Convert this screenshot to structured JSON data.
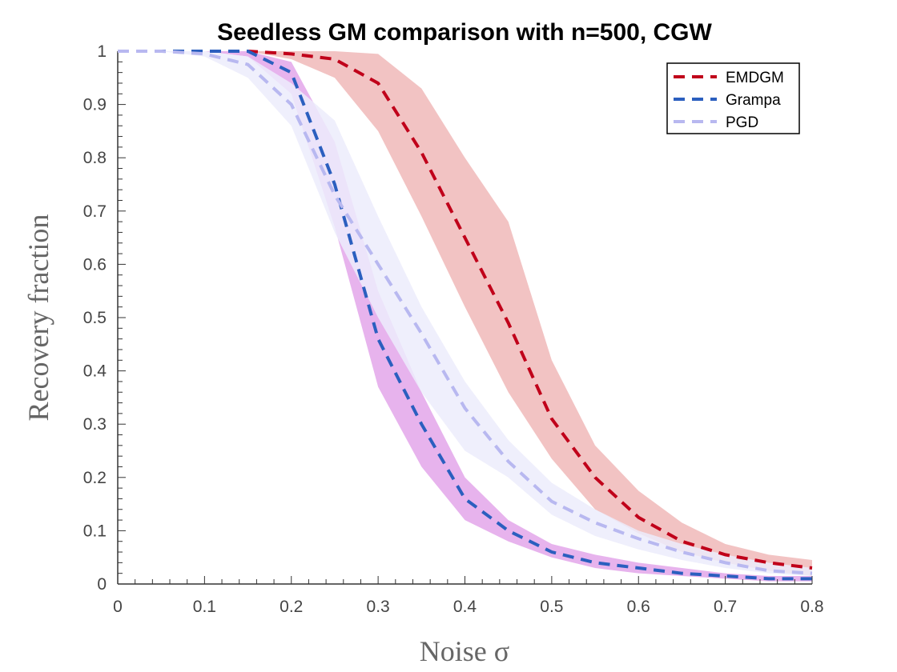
{
  "chart_data": {
    "type": "line",
    "title": "Seedless GM comparison with n=500, CGW",
    "xlabel": "Noise σ",
    "ylabel": "Recovery fraction",
    "xlim": [
      0,
      0.8
    ],
    "ylim": [
      0,
      1
    ],
    "xticks": [
      "0",
      "0.1",
      "0.2",
      "0.3",
      "0.4",
      "0.5",
      "0.6",
      "0.7",
      "0.8"
    ],
    "yticks": [
      "0",
      "0.1",
      "0.2",
      "0.3",
      "0.4",
      "0.5",
      "0.6",
      "0.7",
      "0.8",
      "0.9",
      "1"
    ],
    "grid": false,
    "legend_position": "top-right",
    "x": [
      0,
      0.05,
      0.1,
      0.15,
      0.2,
      0.25,
      0.3,
      0.35,
      0.4,
      0.45,
      0.5,
      0.55,
      0.6,
      0.65,
      0.7,
      0.75,
      0.8
    ],
    "series": [
      {
        "name": "EMDGM",
        "color": "#c0001a",
        "band_color": "#f0b8b8",
        "values": [
          1.0,
          1.0,
          1.0,
          1.0,
          0.995,
          0.985,
          0.94,
          0.81,
          0.65,
          0.49,
          0.31,
          0.2,
          0.125,
          0.08,
          0.055,
          0.04,
          0.03
        ],
        "band_upper": [
          1.0,
          1.0,
          1.0,
          1.0,
          1.0,
          1.0,
          0.995,
          0.93,
          0.8,
          0.68,
          0.42,
          0.26,
          0.175,
          0.115,
          0.075,
          0.055,
          0.045
        ],
        "band_lower": [
          1.0,
          1.0,
          1.0,
          1.0,
          0.985,
          0.95,
          0.85,
          0.69,
          0.52,
          0.36,
          0.235,
          0.14,
          0.095,
          0.06,
          0.04,
          0.025,
          0.015
        ]
      },
      {
        "name": "Grampa",
        "color": "#2b5fbf",
        "band_color": "#e3a6ea",
        "values": [
          1.0,
          1.0,
          1.0,
          1.0,
          0.96,
          0.75,
          0.46,
          0.3,
          0.16,
          0.1,
          0.06,
          0.04,
          0.03,
          0.02,
          0.015,
          0.01,
          0.01
        ],
        "band_upper": [
          1.0,
          1.0,
          1.0,
          1.0,
          0.98,
          0.83,
          0.55,
          0.36,
          0.2,
          0.12,
          0.075,
          0.055,
          0.04,
          0.03,
          0.02,
          0.015,
          0.015
        ],
        "band_lower": [
          1.0,
          1.0,
          1.0,
          0.99,
          0.92,
          0.67,
          0.37,
          0.22,
          0.12,
          0.08,
          0.05,
          0.03,
          0.02,
          0.015,
          0.01,
          0.005,
          0.005
        ]
      },
      {
        "name": "PGD",
        "color": "#b8b8f0",
        "band_color": "#ececfb",
        "values": [
          1.0,
          1.0,
          0.995,
          0.975,
          0.9,
          0.73,
          0.6,
          0.47,
          0.33,
          0.23,
          0.155,
          0.115,
          0.085,
          0.06,
          0.04,
          0.025,
          0.02
        ],
        "band_upper": [
          1.0,
          1.0,
          1.0,
          0.99,
          0.94,
          0.87,
          0.69,
          0.52,
          0.38,
          0.27,
          0.19,
          0.14,
          0.1,
          0.075,
          0.055,
          0.04,
          0.03
        ],
        "band_lower": [
          1.0,
          1.0,
          0.99,
          0.95,
          0.86,
          0.66,
          0.5,
          0.36,
          0.25,
          0.2,
          0.13,
          0.09,
          0.065,
          0.045,
          0.03,
          0.02,
          0.015
        ]
      }
    ]
  }
}
